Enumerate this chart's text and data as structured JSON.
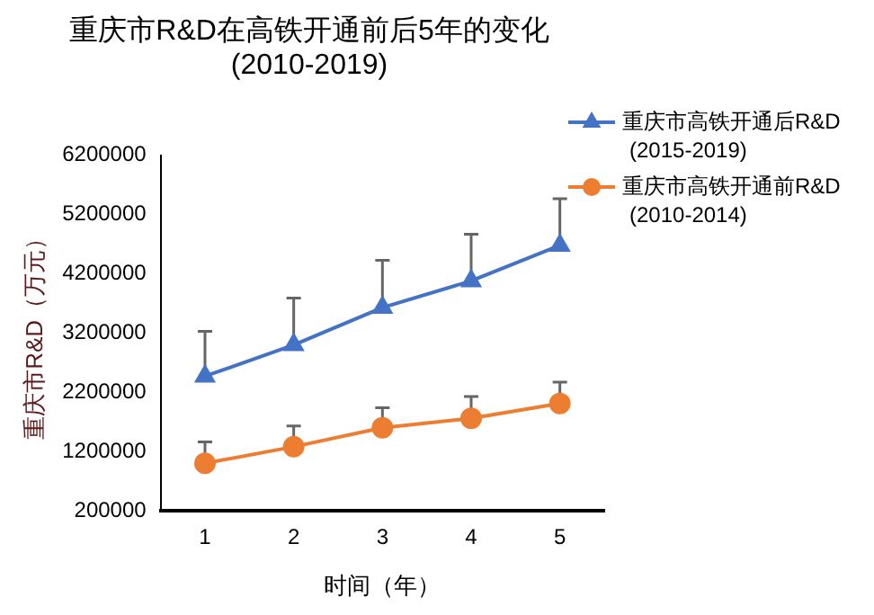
{
  "chart_data": {
    "type": "line",
    "title": "重庆市R&D在高铁开通前后5年的变化 (2010-2019)",
    "xlabel": "时间（年）",
    "ylabel": "重庆市R&D（万元）",
    "categories": [
      "1",
      "2",
      "3",
      "4",
      "5"
    ],
    "ylim": [
      200000,
      6200000
    ],
    "yticks": [
      200000,
      1200000,
      2200000,
      3200000,
      4200000,
      5200000,
      6200000
    ],
    "grid": false,
    "legend": "top right",
    "series": [
      {
        "name": "重庆市高铁开通后R&D (2015-2019)",
        "color": "#4472c4",
        "marker": "triangle",
        "values": [
          2470000,
          3000000,
          3630000,
          4080000,
          4680000
        ],
        "errors": [
          [
            2470000,
            3230000
          ],
          [
            3000000,
            3790000
          ],
          [
            3630000,
            4430000
          ],
          [
            4080000,
            4870000
          ],
          [
            4680000,
            5470000
          ]
        ]
      },
      {
        "name": "重庆市高铁开通前R&D (2010-2014)",
        "color": "#ed7d31",
        "marker": "circle",
        "values": [
          1000000,
          1280000,
          1600000,
          1760000,
          2010000
        ],
        "errors": [
          [
            1000000,
            1360000
          ],
          [
            1280000,
            1630000
          ],
          [
            1600000,
            1940000
          ],
          [
            1760000,
            2130000
          ],
          [
            2010000,
            2370000
          ]
        ]
      }
    ]
  }
}
